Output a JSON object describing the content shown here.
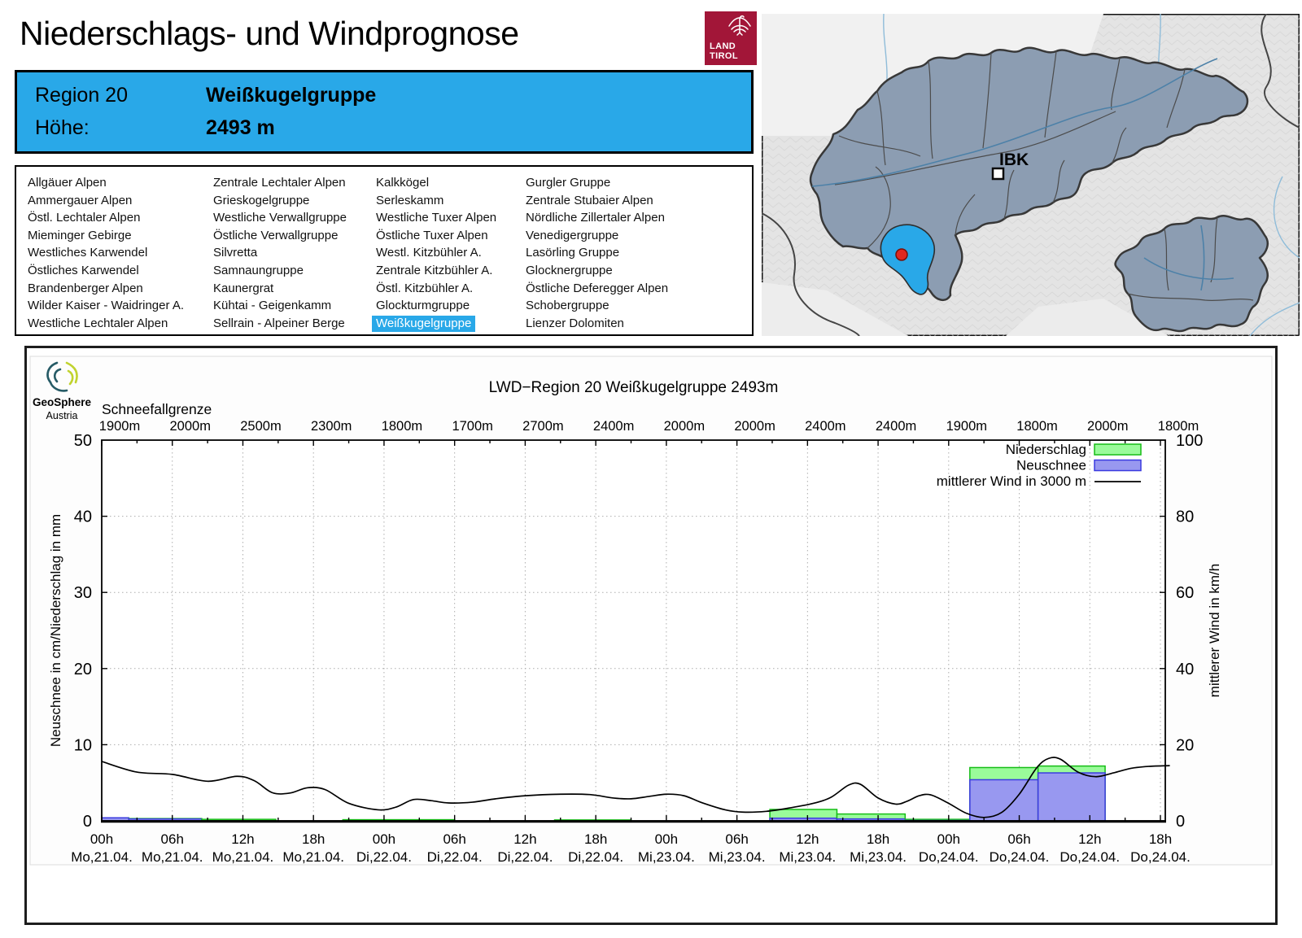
{
  "header": {
    "title": "Niederschlags- und Windprognose",
    "logo": {
      "line1": "LAND",
      "line2": "TIROL"
    }
  },
  "info_box": {
    "region_label": "Region 20",
    "region_name": "Weißkugelgruppe",
    "hoehe_label": "Höhe:",
    "hoehe_value": "2493 m"
  },
  "region_list": {
    "selected": "Weißkugelgruppe",
    "columns": [
      [
        "Allgäuer Alpen",
        "Ammergauer Alpen",
        "Östl. Lechtaler Alpen",
        "Mieminger Gebirge",
        "Westliches Karwendel",
        "Östliches Karwendel",
        "Brandenberger Alpen",
        "Wilder Kaiser - Waidringer A.",
        "Westliche Lechtaler Alpen"
      ],
      [
        "Zentrale Lechtaler Alpen",
        "Grieskogelgruppe",
        "Westliche Verwallgruppe",
        "Östliche Verwallgruppe",
        "Silvretta",
        "Samnaungruppe",
        "Kaunergrat",
        "Kühtai - Geigenkamm",
        "Sellrain - Alpeiner Berge"
      ],
      [
        "Kalkkögel",
        "Serleskamm",
        "Westliche Tuxer Alpen",
        "Östliche Tuxer Alpen",
        "Westl. Kitzbühler A.",
        "Zentrale Kitzbühler A.",
        "Östl. Kitzbühler A.",
        "Glockturmgruppe",
        "Weißkugelgruppe"
      ],
      [
        "Gurgler Gruppe",
        "Zentrale Stubaier Alpen",
        "Nördliche Zillertaler Alpen",
        "Venedigergruppe",
        "Lasörling Gruppe",
        "Glocknergruppe",
        "Östliche Deferegger Alpen",
        "Schobergruppe",
        "Lienzer Dolomiten"
      ]
    ]
  },
  "map": {
    "city_label": "IBK",
    "highlight_color": "#29A8E8",
    "region_fill": "#8C9DB2",
    "marker_color": "#E02820"
  },
  "geosphere": {
    "line1": "GeoSphere",
    "line2": "Austria"
  },
  "chart_data": {
    "type": "bar",
    "title": "LWD−Region 20 Weißkugelgruppe 2493m",
    "snowline_label": "Schneefallgrenze",
    "snowline_values": [
      "1900m",
      "2000m",
      "2500m",
      "2300m",
      "1800m",
      "1700m",
      "2700m",
      "2400m",
      "2000m",
      "2000m",
      "2400m",
      "2400m",
      "1900m",
      "1800m",
      "2000m",
      "1800m"
    ],
    "ylabel_left": "Neuschnee in cm/Niederschlag in mm",
    "ylabel_right": "mittlerer Wind in km/h",
    "ylim_left": [
      0,
      50
    ],
    "ylim_right": [
      0,
      100
    ],
    "grid": "dotted",
    "x_ticks": [
      {
        "hour": "00h",
        "date": "Mo,21.04."
      },
      {
        "hour": "06h",
        "date": "Mo,21.04."
      },
      {
        "hour": "12h",
        "date": "Mo,21.04."
      },
      {
        "hour": "18h",
        "date": "Mo,21.04."
      },
      {
        "hour": "00h",
        "date": "Di,22.04."
      },
      {
        "hour": "06h",
        "date": "Di,22.04."
      },
      {
        "hour": "12h",
        "date": "Di,22.04."
      },
      {
        "hour": "18h",
        "date": "Di,22.04."
      },
      {
        "hour": "00h",
        "date": "Mi,23.04."
      },
      {
        "hour": "06h",
        "date": "Mi,23.04."
      },
      {
        "hour": "12h",
        "date": "Mi,23.04."
      },
      {
        "hour": "18h",
        "date": "Mi,23.04."
      },
      {
        "hour": "00h",
        "date": "Do,24.04."
      },
      {
        "hour": "06h",
        "date": "Do,24.04."
      },
      {
        "hour": "12h",
        "date": "Do,24.04."
      },
      {
        "hour": "18h",
        "date": "Do,24.04."
      }
    ],
    "legend": [
      {
        "label": "Niederschlag",
        "series": "niederschlag",
        "color": "#9AFB9A",
        "border": "#16BD16"
      },
      {
        "label": "Neuschnee",
        "series": "neuschnee",
        "color": "#9898F0",
        "border": "#3A3ADF"
      },
      {
        "label": "mittlerer Wind in 3000 m",
        "series": "wind",
        "type": "line",
        "color": "#000000"
      }
    ],
    "bars": [
      {
        "start_h": 0,
        "end_h": 2.3,
        "niederschlag_mm": 0.25,
        "neuschnee_cm": 0.4
      },
      {
        "start_h": 2.3,
        "end_h": 8.5,
        "niederschlag_mm": 0.3,
        "neuschnee_cm": 0.25
      },
      {
        "start_h": 8.5,
        "end_h": 14.8,
        "niederschlag_mm": 0.2,
        "neuschnee_cm": 0
      },
      {
        "start_h": 20.5,
        "end_h": 30,
        "niederschlag_mm": 0.15,
        "neuschnee_cm": 0
      },
      {
        "start_h": 38.5,
        "end_h": 45,
        "niederschlag_mm": 0.12,
        "neuschnee_cm": 0
      },
      {
        "start_h": 56.8,
        "end_h": 62.5,
        "niederschlag_mm": 1.5,
        "neuschnee_cm": 0.35
      },
      {
        "start_h": 62.5,
        "end_h": 68.3,
        "niederschlag_mm": 0.9,
        "neuschnee_cm": 0.25
      },
      {
        "start_h": 68.3,
        "end_h": 73.8,
        "niederschlag_mm": 0.2,
        "neuschnee_cm": 0.05
      },
      {
        "start_h": 73.8,
        "end_h": 79.6,
        "niederschlag_mm": 7.0,
        "neuschnee_cm": 5.4
      },
      {
        "start_h": 79.6,
        "end_h": 85.3,
        "niederschlag_mm": 7.2,
        "neuschnee_cm": 6.3
      }
    ],
    "wind_points": [
      [
        0,
        15.6
      ],
      [
        3,
        12.8
      ],
      [
        6,
        12.2
      ],
      [
        9,
        10.4
      ],
      [
        11.5,
        11.7
      ],
      [
        13,
        10.5
      ],
      [
        14.5,
        7.4
      ],
      [
        16,
        7.3
      ],
      [
        17.5,
        8.7
      ],
      [
        19,
        8.2
      ],
      [
        21,
        4.6
      ],
      [
        23.5,
        2.9
      ],
      [
        25,
        3.6
      ],
      [
        26.5,
        5.6
      ],
      [
        28,
        5.3
      ],
      [
        29.5,
        4.7
      ],
      [
        31.5,
        4.9
      ],
      [
        33.5,
        5.8
      ],
      [
        36,
        6.6
      ],
      [
        39,
        7.0
      ],
      [
        41.5,
        6.9
      ],
      [
        43.5,
        6.0
      ],
      [
        45,
        5.8
      ],
      [
        46.5,
        6.4
      ],
      [
        48,
        7.0
      ],
      [
        49.5,
        6.6
      ],
      [
        51,
        4.8
      ],
      [
        53,
        2.9
      ],
      [
        54.5,
        2.3
      ],
      [
        56.5,
        2.5
      ],
      [
        58.5,
        3.4
      ],
      [
        60.5,
        4.6
      ],
      [
        62,
        6.2
      ],
      [
        63.5,
        9.4
      ],
      [
        64.5,
        9.6
      ],
      [
        66,
        6.0
      ],
      [
        67.5,
        4.4
      ],
      [
        68.5,
        5.2
      ],
      [
        69.5,
        6.6
      ],
      [
        70.5,
        6.8
      ],
      [
        72,
        4.6
      ],
      [
        73.5,
        2.0
      ],
      [
        75,
        0.9
      ],
      [
        76.5,
        2.2
      ],
      [
        78,
        7.0
      ],
      [
        79.5,
        14.0
      ],
      [
        80.5,
        16.4
      ],
      [
        81.5,
        16.2
      ],
      [
        83,
        12.8
      ],
      [
        84.5,
        11.6
      ],
      [
        86,
        12.6
      ],
      [
        87.5,
        13.8
      ],
      [
        89,
        14.3
      ],
      [
        90.8,
        14.5
      ]
    ]
  }
}
